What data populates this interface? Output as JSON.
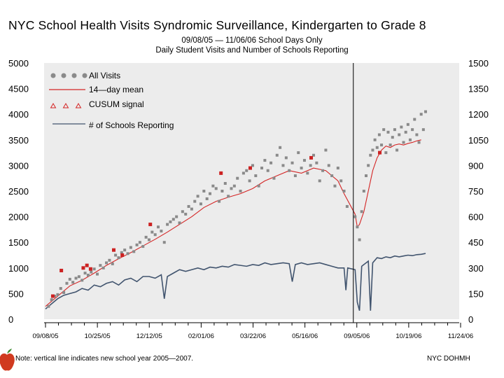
{
  "chart_data": {
    "type": "scatter",
    "title": "NYC School Health Visits Syndromic Surveillance, Kindergarten to Grade 8",
    "subtitle_line1": "09/08/05 — 11/06/06  School Days Only",
    "subtitle_line2": "Daily Student Visits and Number of Schools Reporting",
    "left_axis": {
      "min": 0,
      "max": 5000,
      "ticks": [
        "0",
        "500",
        "1000",
        "1500",
        "2000",
        "2500",
        "3000",
        "3500",
        "4000",
        "4500",
        "5000"
      ]
    },
    "right_axis": {
      "min": 0,
      "max": 1500,
      "ticks": [
        "0",
        "150",
        "300",
        "450",
        "600",
        "750",
        "900",
        "1050",
        "1200",
        "1350",
        "1500"
      ]
    },
    "x_axis": {
      "ticks": [
        "09/08/05",
        "10/25/05",
        "12/12/05",
        "02/01/06",
        "03/22/06",
        "05/16/06",
        "09/05/06",
        "10/19/06",
        "11/24/06"
      ]
    },
    "school_year_line_label": "09/05/06",
    "legend": {
      "all_visits": "All Visits",
      "mean": "14—day mean",
      "cusum": "CUSUM signal",
      "schools": "# of Schools Reporting"
    },
    "series": [
      {
        "name": "All Visits",
        "color": "#8a8a8a",
        "points": [
          [
            0.5,
            250
          ],
          [
            1,
            380
          ],
          [
            1.5,
            450
          ],
          [
            2,
            480
          ],
          [
            2.5,
            600
          ],
          [
            3,
            520
          ],
          [
            3.5,
            700
          ],
          [
            4,
            780
          ],
          [
            4.5,
            720
          ],
          [
            5,
            800
          ],
          [
            5.5,
            830
          ],
          [
            6,
            760
          ],
          [
            6.5,
            900
          ],
          [
            7,
            860
          ],
          [
            7.5,
            920
          ],
          [
            8,
            980
          ],
          [
            8.5,
            880
          ],
          [
            9,
            1050
          ],
          [
            9.5,
            1000
          ],
          [
            10,
            1100
          ],
          [
            10.5,
            1150
          ],
          [
            11,
            1080
          ],
          [
            11.5,
            1250
          ],
          [
            12,
            1200
          ],
          [
            12.5,
            1300
          ],
          [
            13,
            1350
          ],
          [
            13.5,
            1280
          ],
          [
            14,
            1400
          ],
          [
            14.5,
            1320
          ],
          [
            15,
            1450
          ],
          [
            15.5,
            1500
          ],
          [
            16,
            1420
          ],
          [
            16.5,
            1600
          ],
          [
            17,
            1550
          ],
          [
            17.5,
            1700
          ],
          [
            18,
            1650
          ],
          [
            18.5,
            1800
          ],
          [
            19,
            1720
          ],
          [
            19.5,
            1500
          ],
          [
            20,
            1850
          ],
          [
            20.5,
            1900
          ],
          [
            21,
            1950
          ],
          [
            21.5,
            2000
          ],
          [
            22,
            1880
          ],
          [
            22.5,
            2100
          ],
          [
            23,
            2050
          ],
          [
            23.5,
            2200
          ],
          [
            24,
            2150
          ],
          [
            24.5,
            2300
          ],
          [
            25,
            2400
          ],
          [
            25.5,
            2250
          ],
          [
            26,
            2500
          ],
          [
            26.5,
            2350
          ],
          [
            27,
            2450
          ],
          [
            27.5,
            2600
          ],
          [
            28,
            2550
          ],
          [
            28.5,
            2300
          ],
          [
            29,
            2500
          ],
          [
            29.5,
            2650
          ],
          [
            30,
            2400
          ],
          [
            30.5,
            2550
          ],
          [
            31,
            2600
          ],
          [
            31.5,
            2750
          ],
          [
            32,
            2500
          ],
          [
            32.5,
            2850
          ],
          [
            33,
            2900
          ],
          [
            33.5,
            2700
          ],
          [
            34,
            3000
          ],
          [
            34.5,
            2800
          ],
          [
            35,
            2600
          ],
          [
            35.5,
            2950
          ],
          [
            36,
            3100
          ],
          [
            36.5,
            2900
          ],
          [
            37,
            3050
          ],
          [
            37.5,
            2750
          ],
          [
            38,
            3200
          ],
          [
            38.5,
            3350
          ],
          [
            39,
            3000
          ],
          [
            39.5,
            3150
          ],
          [
            40,
            2900
          ],
          [
            40.5,
            3050
          ],
          [
            41,
            2800
          ],
          [
            41.5,
            3250
          ],
          [
            42,
            2950
          ],
          [
            42.5,
            3100
          ],
          [
            43,
            2850
          ],
          [
            43.5,
            3000
          ],
          [
            44,
            3200
          ],
          [
            44.5,
            3050
          ],
          [
            45,
            2700
          ],
          [
            45.5,
            2900
          ],
          [
            46,
            3300
          ],
          [
            46.5,
            3000
          ],
          [
            47,
            2800
          ],
          [
            47.5,
            2600
          ],
          [
            48,
            2950
          ],
          [
            48.5,
            2700
          ],
          [
            49,
            2500
          ],
          [
            49.5,
            2200
          ],
          [
            50,
            2000
          ],
          [
            50.5,
            1800
          ],
          [
            51,
            1550
          ],
          [
            51.5,
            2100
          ],
          [
            52,
            2500
          ],
          [
            52.5,
            2800
          ],
          [
            53,
            3000
          ],
          [
            53.5,
            3200
          ],
          [
            54,
            3300
          ],
          [
            54.5,
            3500
          ],
          [
            55,
            3350
          ],
          [
            55.5,
            3600
          ],
          [
            56,
            3400
          ],
          [
            56.5,
            3700
          ],
          [
            57,
            3250
          ],
          [
            57.5,
            3650
          ],
          [
            58,
            3400
          ],
          [
            58.5,
            3550
          ],
          [
            59,
            3700
          ],
          [
            59.5,
            3300
          ],
          [
            60,
            3600
          ],
          [
            60.5,
            3750
          ],
          [
            61,
            3450
          ],
          [
            61.5,
            3650
          ],
          [
            62,
            3800
          ],
          [
            62.5,
            3500
          ],
          [
            63,
            3700
          ],
          [
            63.5,
            3900
          ],
          [
            64,
            3600
          ],
          [
            64.5,
            3450
          ],
          [
            65,
            4000
          ],
          [
            65.5,
            3700
          ],
          [
            66,
            4050
          ]
        ]
      },
      {
        "name": "CUSUM signal",
        "color": "#cc2222",
        "points": [
          [
            1.2,
            450
          ],
          [
            2.6,
            950
          ],
          [
            6.2,
            1000
          ],
          [
            6.8,
            1050
          ],
          [
            7.4,
            980
          ],
          [
            11.2,
            1350
          ],
          [
            12.6,
            1250
          ],
          [
            17.2,
            1850
          ],
          [
            28.8,
            2850
          ],
          [
            33.6,
            2950
          ],
          [
            43.6,
            3150
          ],
          [
            55.6,
            3250
          ]
        ]
      },
      {
        "name": "14-day mean",
        "color": "#d42424",
        "points": [
          [
            0,
            250
          ],
          [
            2,
            450
          ],
          [
            4,
            650
          ],
          [
            6,
            760
          ],
          [
            8,
            900
          ],
          [
            10,
            1050
          ],
          [
            12,
            1180
          ],
          [
            14,
            1300
          ],
          [
            16,
            1430
          ],
          [
            18,
            1560
          ],
          [
            20,
            1700
          ],
          [
            22,
            1850
          ],
          [
            24,
            2000
          ],
          [
            26,
            2180
          ],
          [
            28,
            2300
          ],
          [
            30,
            2380
          ],
          [
            32,
            2450
          ],
          [
            34,
            2550
          ],
          [
            36,
            2700
          ],
          [
            38,
            2800
          ],
          [
            40,
            2900
          ],
          [
            42,
            2850
          ],
          [
            44,
            2950
          ],
          [
            46,
            2900
          ],
          [
            48,
            2700
          ],
          [
            49,
            2450
          ],
          [
            50,
            2050
          ],
          [
            50.5,
            1800
          ],
          [
            51,
            1850
          ],
          [
            52,
            2100
          ],
          [
            53,
            2500
          ],
          [
            54,
            2900
          ],
          [
            55,
            3150
          ],
          [
            56,
            3300
          ],
          [
            57,
            3380
          ],
          [
            58,
            3350
          ],
          [
            59,
            3400
          ],
          [
            60,
            3420
          ],
          [
            61,
            3400
          ],
          [
            62,
            3430
          ],
          [
            63,
            3450
          ],
          [
            64,
            3480
          ],
          [
            65,
            3500
          ]
        ]
      },
      {
        "name": "# of Schools Reporting",
        "color": "#41546e",
        "points": [
          [
            0,
            60
          ],
          [
            1,
            90
          ],
          [
            2,
            120
          ],
          [
            3,
            140
          ],
          [
            4,
            150
          ],
          [
            5,
            160
          ],
          [
            6,
            180
          ],
          [
            7,
            170
          ],
          [
            8,
            200
          ],
          [
            9,
            190
          ],
          [
            10,
            210
          ],
          [
            11,
            220
          ],
          [
            12,
            200
          ],
          [
            13,
            230
          ],
          [
            14,
            240
          ],
          [
            15,
            220
          ],
          [
            16,
            250
          ],
          [
            17,
            250
          ],
          [
            18,
            240
          ],
          [
            19,
            260
          ],
          [
            19.5,
            120
          ],
          [
            20,
            250
          ],
          [
            21,
            270
          ],
          [
            22,
            290
          ],
          [
            23,
            280
          ],
          [
            24,
            290
          ],
          [
            25,
            300
          ],
          [
            26,
            290
          ],
          [
            27,
            305
          ],
          [
            28,
            300
          ],
          [
            29,
            310
          ],
          [
            30,
            305
          ],
          [
            31,
            320
          ],
          [
            32,
            315
          ],
          [
            33,
            310
          ],
          [
            34,
            320
          ],
          [
            35,
            315
          ],
          [
            36,
            330
          ],
          [
            37,
            320
          ],
          [
            38,
            325
          ],
          [
            39,
            330
          ],
          [
            40,
            325
          ],
          [
            40.5,
            220
          ],
          [
            41,
            320
          ],
          [
            42,
            330
          ],
          [
            43,
            320
          ],
          [
            44,
            325
          ],
          [
            45,
            330
          ],
          [
            46,
            320
          ],
          [
            47,
            310
          ],
          [
            48,
            300
          ],
          [
            49,
            300
          ],
          [
            49.3,
            170
          ],
          [
            49.6,
            300
          ],
          [
            50,
            290
          ],
          [
            50.5,
            100
          ],
          [
            51,
            50
          ],
          [
            51.5,
            310
          ],
          [
            52,
            320
          ],
          [
            52.5,
            330
          ],
          [
            53,
            340
          ],
          [
            53.5,
            50
          ],
          [
            54,
            330
          ],
          [
            55,
            360
          ],
          [
            56,
            355
          ],
          [
            57,
            365
          ],
          [
            58,
            360
          ],
          [
            59,
            370
          ],
          [
            60,
            365
          ],
          [
            61,
            370
          ],
          [
            62,
            375
          ],
          [
            63,
            372
          ],
          [
            64,
            378
          ],
          [
            65,
            380
          ],
          [
            66,
            385
          ]
        ]
      }
    ]
  },
  "note": "Note: vertical line indicates new school year 2005—2007.",
  "credit": "NYC DOHMH"
}
